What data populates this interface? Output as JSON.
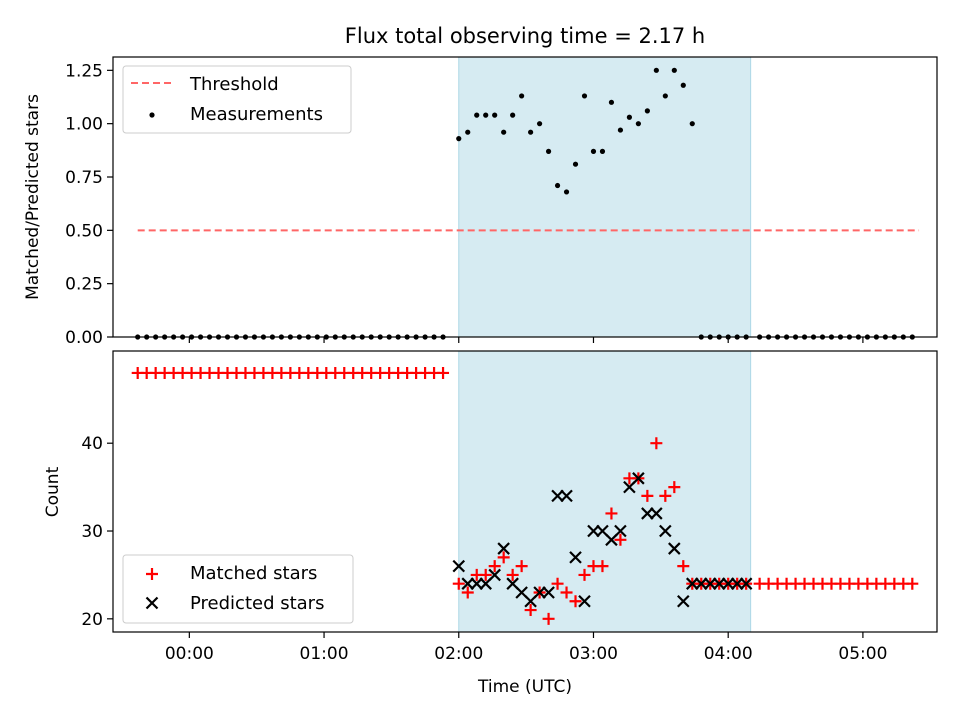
{
  "title": "Flux total observing time = 2.17 h",
  "colors": {
    "shade": "#add8e6",
    "threshold": "#ff6666",
    "measure": "#000000",
    "matched": "#ff0000",
    "predicted": "#000000"
  },
  "chart_data": [
    {
      "type": "scatter",
      "panel": "top",
      "title": "Flux total observing time = 2.17 h",
      "ylabel": "Matched/Predicted stars",
      "xlabel": "",
      "xlim": [
        "23:26",
        "05:33"
      ],
      "ylim": [
        0,
        1.3125
      ],
      "ytick_labels": [
        "0.00",
        "0.25",
        "0.50",
        "0.75",
        "1.00",
        "1.25"
      ],
      "shaded_span": [
        "02:00",
        "04:10"
      ],
      "legend": "top-left",
      "legend_entries": [
        "Threshold",
        "Measurements"
      ],
      "threshold": {
        "name": "Threshold",
        "y": 0.5,
        "x_range": [
          "23:37",
          "05:25"
        ],
        "style": "dashed"
      },
      "series": [
        {
          "name": "Measurements",
          "x": [
            "23:37",
            "23:41",
            "23:45",
            "23:49",
            "23:53",
            "23:57",
            "00:01",
            "00:05",
            "00:09",
            "00:13",
            "00:17",
            "00:21",
            "00:25",
            "00:29",
            "00:33",
            "00:37",
            "00:41",
            "00:45",
            "00:49",
            "00:53",
            "00:57",
            "01:01",
            "01:05",
            "01:09",
            "01:13",
            "01:17",
            "01:21",
            "01:25",
            "01:29",
            "01:33",
            "01:37",
            "01:41",
            "01:45",
            "01:49",
            "01:53",
            "02:00",
            "02:04",
            "02:08",
            "02:12",
            "02:16",
            "02:20",
            "02:24",
            "02:28",
            "02:32",
            "02:36",
            "02:40",
            "02:44",
            "02:48",
            "02:52",
            "02:56",
            "03:00",
            "03:04",
            "03:08",
            "03:12",
            "03:16",
            "03:20",
            "03:24",
            "03:28",
            "03:32",
            "03:36",
            "03:40",
            "03:44",
            "03:48",
            "03:52",
            "03:56",
            "04:00",
            "04:04",
            "04:08",
            "04:14",
            "04:18",
            "04:22",
            "04:26",
            "04:30",
            "04:34",
            "04:38",
            "04:42",
            "04:46",
            "04:50",
            "04:54",
            "04:58",
            "05:02",
            "05:06",
            "05:10",
            "05:14",
            "05:18",
            "05:22"
          ],
          "y": [
            0,
            0,
            0,
            0,
            0,
            0,
            0,
            0,
            0,
            0,
            0,
            0,
            0,
            0,
            0,
            0,
            0,
            0,
            0,
            0,
            0,
            0,
            0,
            0,
            0,
            0,
            0,
            0,
            0,
            0,
            0,
            0,
            0,
            0,
            0,
            0.93,
            0.96,
            1.04,
            1.04,
            1.04,
            0.96,
            1.04,
            1.13,
            0.96,
            1.0,
            0.87,
            0.71,
            0.68,
            0.81,
            1.13,
            0.87,
            0.87,
            1.1,
            0.97,
            1.03,
            1.0,
            1.06,
            1.25,
            1.13,
            1.25,
            1.18,
            1.0,
            0,
            0,
            0,
            0,
            0,
            0,
            0,
            0,
            0,
            0,
            0,
            0,
            0,
            0,
            0,
            0,
            0,
            0,
            0,
            0,
            0,
            0,
            0,
            0
          ]
        }
      ]
    },
    {
      "type": "scatter",
      "panel": "bottom",
      "xlabel": "Time (UTC)",
      "ylabel": "Count",
      "xlim": [
        "23:26",
        "05:33"
      ],
      "ylim": [
        18.5,
        50.5
      ],
      "xtick_labels": [
        "00:00",
        "01:00",
        "02:00",
        "03:00",
        "04:00",
        "05:00"
      ],
      "ytick_labels": [
        "20",
        "30",
        "40"
      ],
      "shaded_span": [
        "02:00",
        "04:10"
      ],
      "legend": "bottom-left",
      "legend_entries": [
        "Matched stars",
        "Predicted stars"
      ],
      "series": [
        {
          "name": "Matched stars",
          "marker": "+",
          "x": [
            "23:37",
            "23:41",
            "23:45",
            "23:49",
            "23:53",
            "23:57",
            "00:01",
            "00:05",
            "00:09",
            "00:13",
            "00:17",
            "00:21",
            "00:25",
            "00:29",
            "00:33",
            "00:37",
            "00:41",
            "00:45",
            "00:49",
            "00:53",
            "00:57",
            "01:01",
            "01:05",
            "01:09",
            "01:13",
            "01:17",
            "01:21",
            "01:25",
            "01:29",
            "01:33",
            "01:37",
            "01:41",
            "01:45",
            "01:49",
            "01:53",
            "02:00",
            "02:04",
            "02:08",
            "02:12",
            "02:16",
            "02:20",
            "02:24",
            "02:28",
            "02:32",
            "02:36",
            "02:40",
            "02:44",
            "02:48",
            "02:52",
            "02:56",
            "03:00",
            "03:04",
            "03:08",
            "03:12",
            "03:16",
            "03:20",
            "03:24",
            "03:28",
            "03:32",
            "03:36",
            "03:40",
            "03:44",
            "03:48",
            "03:52",
            "03:56",
            "04:00",
            "04:04",
            "04:08",
            "04:14",
            "04:18",
            "04:22",
            "04:26",
            "04:30",
            "04:34",
            "04:38",
            "04:42",
            "04:46",
            "04:50",
            "04:54",
            "04:58",
            "05:02",
            "05:06",
            "05:10",
            "05:14",
            "05:18",
            "05:22"
          ],
          "y": [
            48,
            48,
            48,
            48,
            48,
            48,
            48,
            48,
            48,
            48,
            48,
            48,
            48,
            48,
            48,
            48,
            48,
            48,
            48,
            48,
            48,
            48,
            48,
            48,
            48,
            48,
            48,
            48,
            48,
            48,
            48,
            48,
            48,
            48,
            48,
            24,
            23,
            25,
            25,
            26,
            27,
            25,
            26,
            21,
            23,
            20,
            24,
            23,
            22,
            25,
            26,
            26,
            32,
            29,
            36,
            36,
            34,
            40,
            34,
            35,
            26,
            24,
            24,
            24,
            24,
            24,
            24,
            24,
            24,
            24,
            24,
            24,
            24,
            24,
            24,
            24,
            24,
            24,
            24,
            24,
            24,
            24,
            24,
            24,
            24,
            24
          ]
        },
        {
          "name": "Predicted stars",
          "marker": "x",
          "x": [
            "02:00",
            "02:04",
            "02:08",
            "02:12",
            "02:16",
            "02:20",
            "02:24",
            "02:28",
            "02:32",
            "02:36",
            "02:40",
            "02:44",
            "02:48",
            "02:52",
            "02:56",
            "03:00",
            "03:04",
            "03:08",
            "03:12",
            "03:16",
            "03:20",
            "03:24",
            "03:28",
            "03:32",
            "03:36",
            "03:40",
            "03:44",
            "03:48",
            "03:52",
            "03:56",
            "04:00",
            "04:04",
            "04:08"
          ],
          "y": [
            26,
            24,
            24,
            24,
            25,
            28,
            24,
            23,
            22,
            23,
            23,
            34,
            34,
            27,
            22,
            30,
            30,
            29,
            30,
            35,
            36,
            32,
            32,
            30,
            28,
            22,
            24,
            24,
            24,
            24,
            24,
            24,
            24
          ]
        }
      ]
    }
  ]
}
